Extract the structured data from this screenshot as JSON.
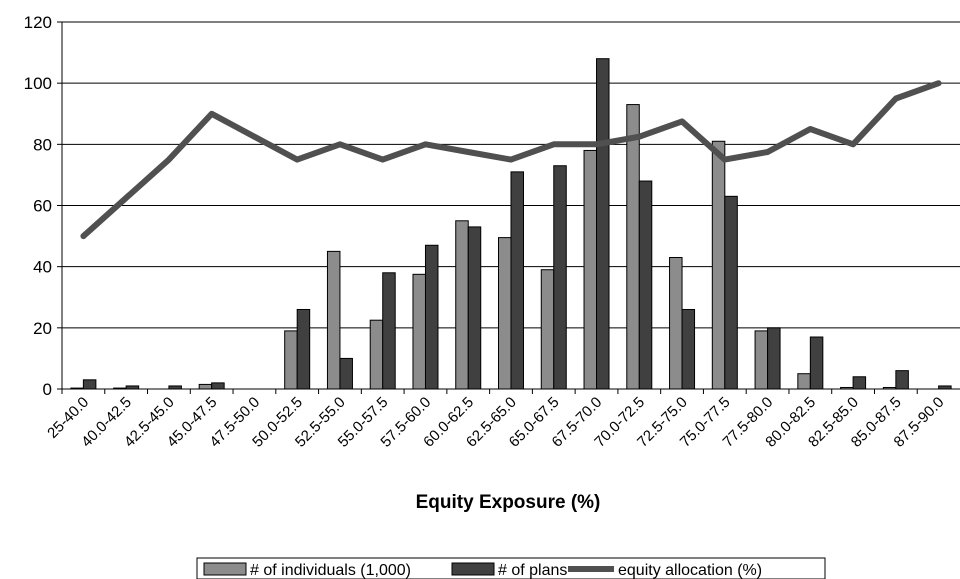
{
  "chart_data": {
    "type": "bar",
    "xlabel": "Equity Exposure (%)",
    "ylabel": "",
    "ylim": [
      0,
      120
    ],
    "yticks": [
      0,
      20,
      40,
      60,
      80,
      100,
      120
    ],
    "grid": true,
    "legend_position": "bottom",
    "categories": [
      "25-40.0",
      "40.0-42.5",
      "42.5-45.0",
      "45.0-47.5",
      "47.5-50.0",
      "50.0-52.5",
      "52.5-55.0",
      "55.0-57.5",
      "57.5-60.0",
      "60.0-62.5",
      "62.5-65.0",
      "65.0-67.5",
      "67.5-70.0",
      "70.0-72.5",
      "72.5-75.0",
      "75.0-77.5",
      "77.5-80.0",
      "80.0-82.5",
      "82.5-85.0",
      "85.0-87.5",
      "87.5-90.0"
    ],
    "series": [
      {
        "name": "# of individuals (1,000)",
        "type": "bar",
        "color": "#8c8c8c",
        "values": [
          0.3,
          0.3,
          0,
          1.5,
          0,
          19,
          45,
          22.5,
          37.5,
          55,
          49.5,
          39,
          78,
          93,
          43,
          81,
          19,
          5,
          0.5,
          0.5,
          0
        ]
      },
      {
        "name": "# of plans",
        "type": "bar",
        "color": "#404040",
        "values": [
          3,
          1,
          1,
          2,
          0,
          26,
          10,
          38,
          47,
          53,
          71,
          73,
          108,
          68,
          26,
          63,
          20,
          17,
          4,
          6,
          1
        ]
      },
      {
        "name": "equity allocation (%)",
        "type": "line",
        "color": "#505050",
        "values": [
          50,
          62.5,
          75,
          90,
          82.5,
          75,
          80,
          75,
          80,
          77.5,
          75,
          80,
          80,
          82.5,
          87.5,
          75,
          77.5,
          85,
          80,
          95,
          100
        ]
      }
    ]
  }
}
